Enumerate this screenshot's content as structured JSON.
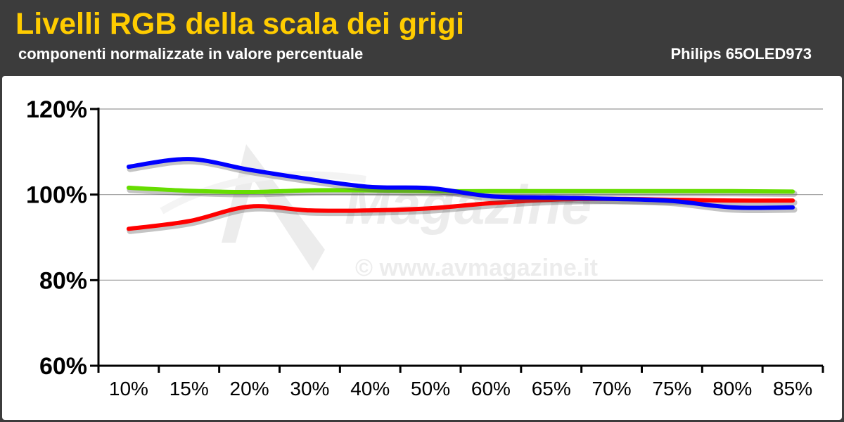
{
  "header": {
    "title": "Livelli RGB della scala dei grigi",
    "subtitle": "componenti normalizzate in valore percentuale",
    "model": "Philips 65OLED973"
  },
  "watermark": {
    "logo_text": "Magazine",
    "copyright": "© www.avmagazine.it"
  },
  "colors": {
    "header_bg": "#3c3c3c",
    "title": "#ffcc00",
    "red": "#ff0000",
    "green": "#66dd00",
    "blue": "#0000ff"
  },
  "chart_data": {
    "type": "line",
    "categories": [
      "10%",
      "15%",
      "20%",
      "30%",
      "40%",
      "50%",
      "60%",
      "65%",
      "70%",
      "75%",
      "80%",
      "85%"
    ],
    "y_ticks": [
      "60%",
      "80%",
      "100%",
      "120%"
    ],
    "ylim": [
      60,
      120
    ],
    "grid": true,
    "series": [
      {
        "color": "#ff0000",
        "values": [
          92.0,
          93.8,
          97.2,
          96.3,
          96.3,
          96.8,
          98.0,
          98.8,
          99.0,
          98.8,
          98.6,
          98.6
        ]
      },
      {
        "color": "#66dd00",
        "values": [
          101.6,
          100.9,
          100.6,
          101.0,
          101.0,
          100.8,
          100.8,
          100.8,
          100.8,
          100.8,
          100.8,
          100.7
        ]
      },
      {
        "color": "#0000ff",
        "values": [
          106.5,
          108.3,
          105.8,
          103.6,
          101.8,
          101.5,
          99.6,
          99.3,
          99.0,
          98.5,
          97.0,
          97.0
        ]
      }
    ]
  }
}
